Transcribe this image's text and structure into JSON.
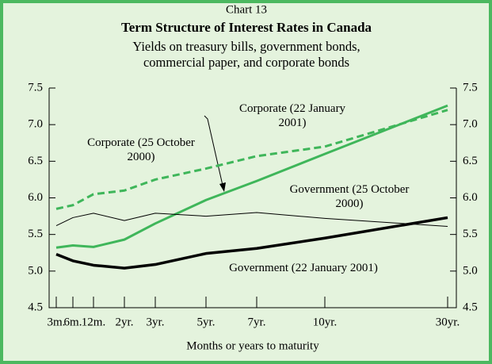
{
  "chart_data": {
    "type": "line",
    "label": "Chart 13",
    "title": "Term Structure of Interest Rates in Canada",
    "subtitle": [
      "Yields on treasury bills, government bonds,",
      "commercial paper, and corporate bonds"
    ],
    "xlabel": "Months or years to maturity",
    "categories": [
      "3m.",
      "6m.",
      "12m.",
      "2yr.",
      "3yr.",
      "5yr.",
      "7yr.",
      "10yr.",
      "30yr."
    ],
    "ylim": [
      4.5,
      7.5
    ],
    "yticks": [
      4.5,
      {
        "value": 5,
        "label": "5.0"
      },
      5.5,
      {
        "value": 6,
        "label": "6.0"
      },
      6.5,
      {
        "value": 7,
        "label": "7.0"
      },
      7.5
    ],
    "series": [
      {
        "name": "Corporate (25 October 2000)",
        "color": "#3fb65a",
        "style": "dashed",
        "values": [
          5.85,
          5.9,
          6.05,
          6.1,
          6.25,
          6.4,
          6.57,
          6.7,
          7.2
        ]
      },
      {
        "name": "Corporate (22 January 2001)",
        "color": "#3fb65a",
        "style": "solid",
        "values": [
          5.32,
          5.35,
          5.33,
          5.43,
          5.65,
          5.97,
          6.23,
          6.6,
          7.26
        ]
      },
      {
        "name": "Government (25 October 2000)",
        "color": "#000000",
        "style": "thin",
        "values": [
          5.62,
          5.73,
          5.79,
          5.69,
          5.79,
          5.75,
          5.8,
          5.72,
          5.61
        ]
      },
      {
        "name": "Government (22 January 2001)",
        "color": "#000000",
        "style": "thick",
        "values": [
          5.23,
          5.14,
          5.08,
          5.04,
          5.09,
          5.24,
          5.31,
          5.45,
          5.73
        ]
      }
    ]
  }
}
